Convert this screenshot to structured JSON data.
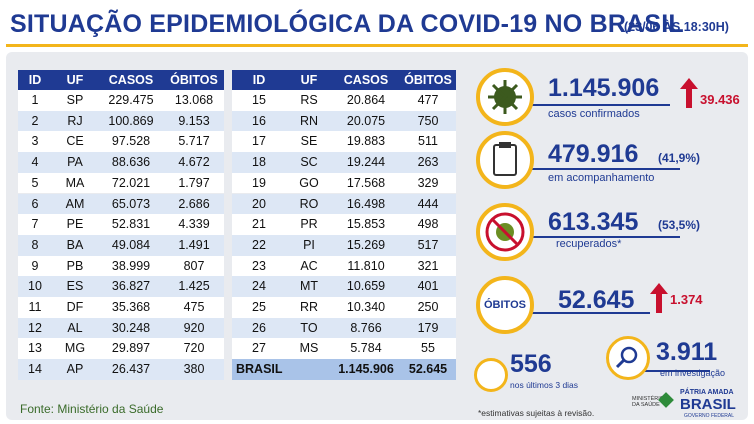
{
  "header": {
    "title": "SITUAÇÃO EPIDEMIOLÓGICA DA COVID-19 NO BRASIL",
    "date": "(23/06 ÀS 18:30H)"
  },
  "table": {
    "columns": [
      "ID",
      "UF",
      "CASOS",
      "ÓBITOS"
    ],
    "rows": [
      [
        "1",
        "SP",
        "229.475",
        "13.068"
      ],
      [
        "2",
        "RJ",
        "100.869",
        "9.153"
      ],
      [
        "3",
        "CE",
        "97.528",
        "5.717"
      ],
      [
        "4",
        "PA",
        "88.636",
        "4.672"
      ],
      [
        "5",
        "MA",
        "72.021",
        "1.797"
      ],
      [
        "6",
        "AM",
        "65.073",
        "2.686"
      ],
      [
        "7",
        "PE",
        "52.831",
        "4.339"
      ],
      [
        "8",
        "BA",
        "49.084",
        "1.491"
      ],
      [
        "9",
        "PB",
        "38.999",
        "807"
      ],
      [
        "10",
        "ES",
        "36.827",
        "1.425"
      ],
      [
        "11",
        "DF",
        "35.368",
        "475"
      ],
      [
        "12",
        "AL",
        "30.248",
        "920"
      ],
      [
        "13",
        "MG",
        "29.897",
        "720"
      ],
      [
        "14",
        "AP",
        "26.437",
        "380"
      ],
      [
        "15",
        "RS",
        "20.864",
        "477"
      ],
      [
        "16",
        "RN",
        "20.075",
        "750"
      ],
      [
        "17",
        "SE",
        "19.883",
        "511"
      ],
      [
        "18",
        "SC",
        "19.244",
        "263"
      ],
      [
        "19",
        "GO",
        "17.568",
        "329"
      ],
      [
        "20",
        "RO",
        "16.498",
        "444"
      ],
      [
        "21",
        "PR",
        "15.853",
        "498"
      ],
      [
        "22",
        "PI",
        "15.269",
        "517"
      ],
      [
        "23",
        "AC",
        "11.810",
        "321"
      ],
      [
        "24",
        "MT",
        "10.659",
        "401"
      ],
      [
        "25",
        "RR",
        "10.340",
        "250"
      ],
      [
        "26",
        "TO",
        "8.766",
        "179"
      ],
      [
        "27",
        "MS",
        "5.784",
        "55"
      ]
    ],
    "total": [
      "BRASIL",
      "1.145.906",
      "52.645"
    ]
  },
  "stats": {
    "cases": {
      "value": "1.145.906",
      "increase": "39.436",
      "label": "casos confirmados"
    },
    "monitoring": {
      "value": "479.916",
      "percent": "(41,9%)",
      "label": "em acompanhamento"
    },
    "recovered": {
      "value": "613.345",
      "percent": "(53,5%)",
      "label": "recuperados*"
    },
    "deaths": {
      "badge": "ÓBITOS",
      "value": "52.645",
      "increase": "1.374"
    },
    "recent": {
      "value": "556",
      "label": "nos últimos 3 dias"
    },
    "investigation": {
      "value": "3.911",
      "label": "em investigação"
    }
  },
  "footer": {
    "source": "Fonte: Ministério da Saúde",
    "note": "*estimativas sujeitas à revisão.",
    "ministry": "MINISTÉRIO DA SAÚDE",
    "motto": "PÁTRIA AMADA",
    "country": "BRASIL",
    "government": "GOVERNO FEDERAL"
  }
}
